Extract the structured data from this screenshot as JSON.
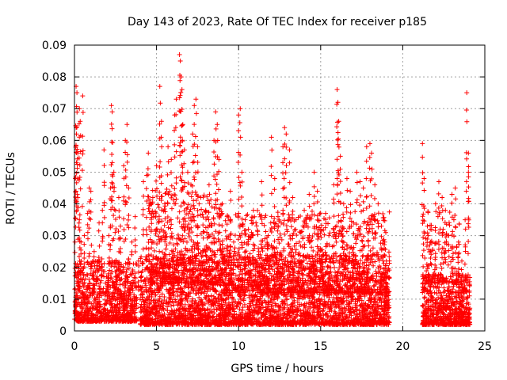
{
  "chart_data": {
    "type": "scatter",
    "title": "Day 143 of 2023, Rate Of TEC Index for receiver p185",
    "xlabel": "GPS time / hours",
    "ylabel": "ROTI / TECUs",
    "xlim": [
      0,
      25
    ],
    "ylim": [
      0,
      0.09
    ],
    "x_ticks": [
      0,
      5,
      10,
      15,
      20,
      25
    ],
    "x_tick_labels": [
      "0",
      "5",
      "10",
      "15",
      "20",
      "25"
    ],
    "y_ticks": [
      0,
      0.01,
      0.02,
      0.03,
      0.04,
      0.05,
      0.06,
      0.07,
      0.08,
      0.09
    ],
    "y_tick_labels": [
      "0",
      "0.01",
      "0.02",
      "0.03",
      "0.04",
      "0.05",
      "0.06",
      "0.07",
      "0.08",
      "0.09"
    ],
    "grid": true,
    "marker": "plus",
    "series": [
      {
        "color": "#ff0000",
        "points": [
          [
            0.05,
            0.008
          ],
          [
            0.1,
            0.012
          ],
          [
            0.1,
            0.077
          ],
          [
            0.15,
            0.075
          ],
          [
            0.1,
            0.064
          ],
          [
            0.12,
            0.062
          ],
          [
            0.05,
            0.048
          ],
          [
            0.2,
            0.056
          ],
          [
            0.3,
            0.07
          ],
          [
            0.35,
            0.066
          ],
          [
            0.5,
            0.074
          ],
          [
            0.3,
            0.035
          ],
          [
            0.4,
            0.028
          ],
          [
            0.6,
            0.03
          ],
          [
            0.8,
            0.037
          ],
          [
            0.9,
            0.045
          ],
          [
            1.0,
            0.044
          ],
          [
            1.2,
            0.025
          ],
          [
            1.5,
            0.034
          ],
          [
            1.7,
            0.038
          ],
          [
            1.8,
            0.057
          ],
          [
            2.1,
            0.03
          ],
          [
            2.2,
            0.045
          ],
          [
            2.3,
            0.053
          ],
          [
            2.25,
            0.071
          ],
          [
            2.3,
            0.069
          ],
          [
            2.4,
            0.05
          ],
          [
            2.5,
            0.038
          ],
          [
            2.7,
            0.042
          ],
          [
            2.8,
            0.033
          ],
          [
            3.0,
            0.052
          ],
          [
            3.1,
            0.06
          ],
          [
            3.2,
            0.065
          ],
          [
            3.3,
            0.045
          ],
          [
            3.5,
            0.028
          ],
          [
            3.7,
            0.036
          ],
          [
            3.9,
            0.022
          ],
          [
            4.2,
            0.047
          ],
          [
            4.4,
            0.049
          ],
          [
            4.5,
            0.056
          ],
          [
            4.7,
            0.04
          ],
          [
            5.0,
            0.052
          ],
          [
            5.2,
            0.077
          ],
          [
            5.3,
            0.066
          ],
          [
            5.5,
            0.04
          ],
          [
            5.7,
            0.058
          ],
          [
            5.9,
            0.054
          ],
          [
            6.1,
            0.068
          ],
          [
            6.2,
            0.073
          ],
          [
            6.4,
            0.087
          ],
          [
            6.45,
            0.085
          ],
          [
            6.5,
            0.08
          ],
          [
            6.55,
            0.076
          ],
          [
            6.6,
            0.065
          ],
          [
            6.7,
            0.057
          ],
          [
            6.9,
            0.05
          ],
          [
            7.1,
            0.046
          ],
          [
            7.2,
            0.062
          ],
          [
            7.3,
            0.071
          ],
          [
            7.4,
            0.073
          ],
          [
            7.5,
            0.058
          ],
          [
            7.7,
            0.042
          ],
          [
            8.0,
            0.038
          ],
          [
            8.2,
            0.046
          ],
          [
            8.5,
            0.06
          ],
          [
            8.6,
            0.069
          ],
          [
            8.7,
            0.065
          ],
          [
            8.8,
            0.054
          ],
          [
            9.0,
            0.04
          ],
          [
            9.3,
            0.036
          ],
          [
            9.5,
            0.044
          ],
          [
            9.7,
            0.028
          ],
          [
            10.0,
            0.068
          ],
          [
            10.1,
            0.07
          ],
          [
            10.2,
            0.05
          ],
          [
            10.4,
            0.035
          ],
          [
            10.6,
            0.032
          ],
          [
            10.9,
            0.038
          ],
          [
            11.2,
            0.026
          ],
          [
            11.4,
            0.047
          ],
          [
            11.6,
            0.029
          ],
          [
            11.8,
            0.03
          ],
          [
            12.0,
            0.061
          ],
          [
            12.2,
            0.048
          ],
          [
            12.4,
            0.036
          ],
          [
            12.7,
            0.058
          ],
          [
            12.8,
            0.064
          ],
          [
            12.9,
            0.062
          ],
          [
            13.1,
            0.057
          ],
          [
            13.3,
            0.042
          ],
          [
            13.5,
            0.035
          ],
          [
            13.7,
            0.028
          ],
          [
            14.0,
            0.038
          ],
          [
            14.3,
            0.043
          ],
          [
            14.6,
            0.05
          ],
          [
            14.8,
            0.044
          ],
          [
            15.0,
            0.032
          ],
          [
            15.3,
            0.037
          ],
          [
            15.5,
            0.03
          ],
          [
            15.8,
            0.046
          ],
          [
            16.0,
            0.076
          ],
          [
            16.05,
            0.072
          ],
          [
            16.1,
            0.066
          ],
          [
            16.2,
            0.055
          ],
          [
            16.4,
            0.04
          ],
          [
            16.6,
            0.048
          ],
          [
            16.8,
            0.044
          ],
          [
            17.0,
            0.034
          ],
          [
            17.2,
            0.05
          ],
          [
            17.4,
            0.047
          ],
          [
            17.6,
            0.045
          ],
          [
            17.8,
            0.058
          ],
          [
            18.0,
            0.059
          ],
          [
            18.1,
            0.056
          ],
          [
            18.3,
            0.046
          ],
          [
            18.5,
            0.04
          ],
          [
            18.7,
            0.033
          ],
          [
            18.9,
            0.028
          ],
          [
            19.0,
            0.022
          ],
          [
            19.1,
            0.012
          ],
          [
            21.2,
            0.059
          ],
          [
            21.3,
            0.048
          ],
          [
            21.5,
            0.033
          ],
          [
            21.7,
            0.028
          ],
          [
            22.0,
            0.04
          ],
          [
            22.2,
            0.047
          ],
          [
            22.4,
            0.042
          ],
          [
            22.6,
            0.038
          ],
          [
            22.8,
            0.03
          ],
          [
            23.0,
            0.043
          ],
          [
            23.2,
            0.045
          ],
          [
            23.4,
            0.028
          ],
          [
            23.6,
            0.022
          ],
          [
            23.8,
            0.035
          ],
          [
            23.9,
            0.075
          ],
          [
            24.0,
            0.056
          ],
          [
            24.0,
            0.05
          ]
        ],
        "dense_bands": [
          {
            "x": [
              0.0,
              3.8
            ],
            "y": [
              0.003,
              0.022
            ],
            "count": 900
          },
          {
            "x": [
              4.0,
              19.2
            ],
            "y": [
              0.002,
              0.024
            ],
            "count": 3400
          },
          {
            "x": [
              4.5,
              9.0
            ],
            "y": [
              0.015,
              0.045
            ],
            "count": 500
          },
          {
            "x": [
              9.0,
              19.2
            ],
            "y": [
              0.012,
              0.038
            ],
            "count": 900
          },
          {
            "x": [
              21.2,
              24.1
            ],
            "y": [
              0.002,
              0.018
            ],
            "count": 700
          },
          {
            "x": [
              21.2,
              23.5
            ],
            "y": [
              0.015,
              0.038
            ],
            "count": 120
          }
        ]
      }
    ]
  }
}
